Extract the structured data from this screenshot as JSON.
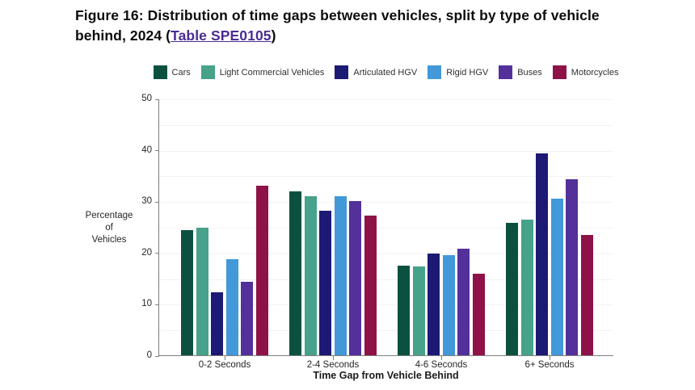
{
  "title": {
    "prefix": "Figure 16: Distribution of time gaps between vehicles, split by type of vehicle behind, 2024 (",
    "link_text": "Table SPE0105",
    "suffix": ")",
    "link_color": "#4c2c92"
  },
  "chart_data": {
    "type": "bar",
    "title": "Figure 16: Distribution of time gaps between vehicles, split by type of vehicle behind, 2024 (Table SPE0105)",
    "categories": [
      "0-2 Seconds",
      "2-4 Seconds",
      "4-6 Seconds",
      "6+ Seconds"
    ],
    "series": [
      {
        "name": "Cars",
        "color": "#0c5140",
        "values": [
          24.5,
          32.1,
          17.5,
          25.8
        ]
      },
      {
        "name": "Light Commercial Vehicles",
        "color": "#46a28a",
        "values": [
          25.0,
          31.1,
          17.3,
          26.5
        ]
      },
      {
        "name": "Articulated HGV",
        "color": "#1c1a74",
        "values": [
          12.3,
          28.3,
          19.8,
          39.5
        ]
      },
      {
        "name": "Rigid HGV",
        "color": "#4298d8",
        "values": [
          18.7,
          31.1,
          19.6,
          30.6
        ]
      },
      {
        "name": "Buses",
        "color": "#53309a",
        "values": [
          14.3,
          30.2,
          20.9,
          34.4
        ]
      },
      {
        "name": "Motorcycles",
        "color": "#8e1247",
        "values": [
          33.1,
          27.3,
          15.9,
          23.5
        ]
      }
    ],
    "xlabel": "Time Gap from Vehicle Behind",
    "ylabel": "Percentage of Vehicles",
    "ylabel_lines": [
      "Percentage",
      "of",
      "Vehicles"
    ],
    "ylim": [
      0,
      50
    ],
    "yticks": [
      0,
      10,
      20,
      30,
      40,
      50
    ],
    "grid": "horizontal",
    "grid_interval": 5,
    "legend_position": "top"
  }
}
